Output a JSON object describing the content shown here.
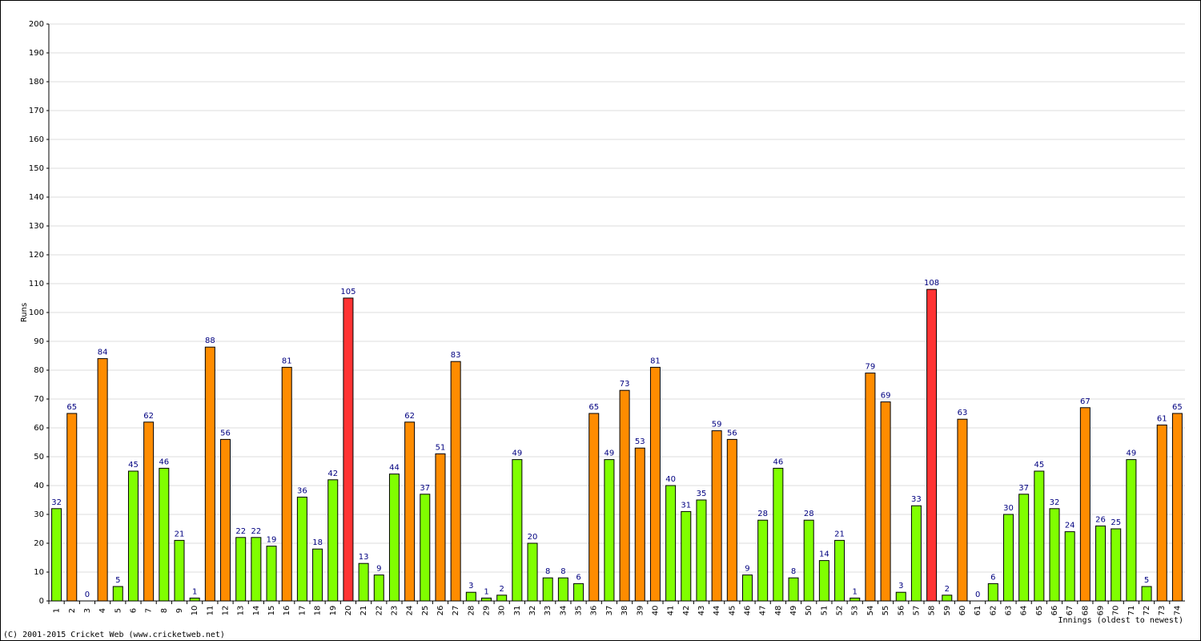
{
  "chart_data": {
    "type": "bar",
    "y_label": "Runs",
    "x_label": "Innings (oldest to newest)",
    "categories": [
      "1",
      "2",
      "3",
      "4",
      "5",
      "6",
      "7",
      "8",
      "9",
      "10",
      "11",
      "12",
      "13",
      "14",
      "15",
      "16",
      "17",
      "18",
      "19",
      "20",
      "21",
      "22",
      "23",
      "24",
      "25",
      "26",
      "27",
      "28",
      "29",
      "30",
      "31",
      "32",
      "33",
      "34",
      "35",
      "36",
      "37",
      "38",
      "39",
      "40",
      "41",
      "42",
      "43",
      "44",
      "45",
      "46",
      "47",
      "48",
      "49",
      "50",
      "51",
      "52",
      "53",
      "54",
      "55",
      "56",
      "57",
      "58",
      "59",
      "60",
      "61",
      "62",
      "63",
      "64",
      "65",
      "66",
      "67",
      "68",
      "69",
      "70",
      "71",
      "72",
      "73",
      "74"
    ],
    "values": [
      32,
      65,
      0,
      84,
      5,
      45,
      62,
      46,
      21,
      1,
      88,
      56,
      22,
      22,
      19,
      81,
      36,
      18,
      42,
      105,
      13,
      9,
      44,
      62,
      37,
      51,
      83,
      3,
      1,
      2,
      49,
      20,
      8,
      8,
      6,
      65,
      49,
      73,
      53,
      81,
      40,
      31,
      35,
      59,
      56,
      9,
      28,
      46,
      8,
      28,
      14,
      21,
      1,
      79,
      69,
      3,
      33,
      108,
      2,
      63,
      0,
      6,
      30,
      37,
      45,
      32,
      24,
      67,
      26,
      25,
      49,
      5,
      61,
      65
    ],
    "colors": [
      "#80ff00",
      "#ff8c00",
      "#80ff00",
      "#ff8c00",
      "#80ff00",
      "#80ff00",
      "#ff8c00",
      "#80ff00",
      "#80ff00",
      "#80ff00",
      "#ff8c00",
      "#ff8c00",
      "#80ff00",
      "#80ff00",
      "#80ff00",
      "#ff8c00",
      "#80ff00",
      "#80ff00",
      "#80ff00",
      "#ff3333",
      "#80ff00",
      "#80ff00",
      "#80ff00",
      "#ff8c00",
      "#80ff00",
      "#ff8c00",
      "#ff8c00",
      "#80ff00",
      "#80ff00",
      "#80ff00",
      "#80ff00",
      "#80ff00",
      "#80ff00",
      "#80ff00",
      "#80ff00",
      "#ff8c00",
      "#80ff00",
      "#ff8c00",
      "#ff8c00",
      "#ff8c00",
      "#80ff00",
      "#80ff00",
      "#80ff00",
      "#ff8c00",
      "#ff8c00",
      "#80ff00",
      "#80ff00",
      "#80ff00",
      "#80ff00",
      "#80ff00",
      "#80ff00",
      "#80ff00",
      "#80ff00",
      "#ff8c00",
      "#ff8c00",
      "#80ff00",
      "#80ff00",
      "#ff3333",
      "#80ff00",
      "#ff8c00",
      "#80ff00",
      "#80ff00",
      "#80ff00",
      "#80ff00",
      "#80ff00",
      "#80ff00",
      "#80ff00",
      "#ff8c00",
      "#80ff00",
      "#80ff00",
      "#80ff00",
      "#80ff00",
      "#ff8c00",
      "#ff8c00"
    ],
    "ylim": [
      0,
      200
    ],
    "yticks": [
      0,
      10,
      20,
      30,
      40,
      50,
      60,
      70,
      80,
      90,
      100,
      110,
      120,
      130,
      140,
      150,
      160,
      170,
      180,
      190,
      200
    ],
    "grid": true
  },
  "footer": "(C) 2001-2015 Cricket Web (www.cricketweb.net)"
}
